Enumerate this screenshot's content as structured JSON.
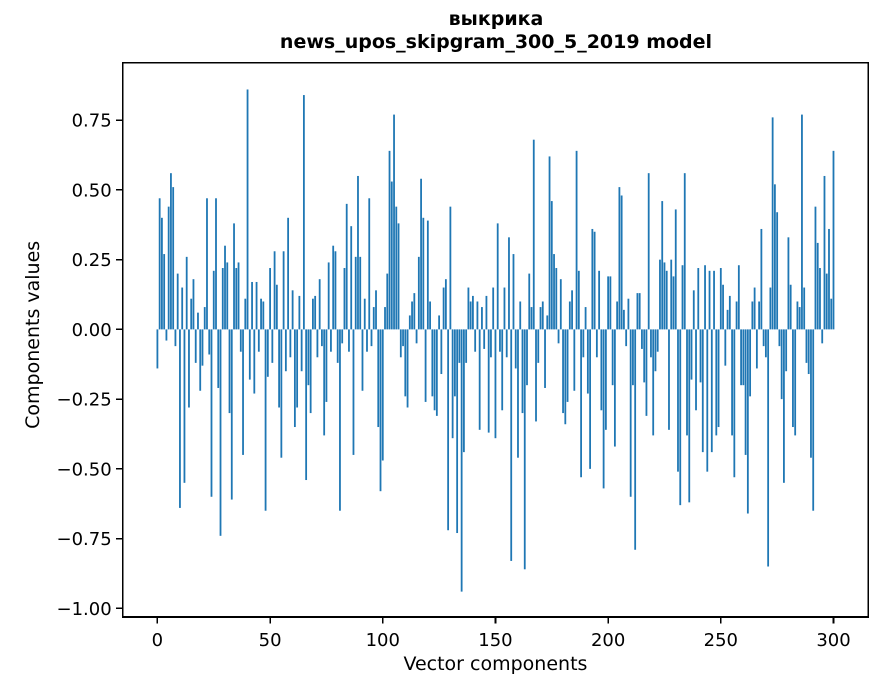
{
  "title_line1": "выкрика",
  "title_line2": "news_upos_skipgram_300_5_2019 model",
  "axes": {
    "xlabel": "Vector components",
    "ylabel": "Components values"
  },
  "chart_data": {
    "type": "bar",
    "title": "выкрика\nnews_upos_skipgram_300_5_2019 model",
    "xlabel": "Vector components",
    "ylabel": "Components values",
    "legend": null,
    "grid": false,
    "bar_color": "#1f77b4",
    "bar_width_units": 0.8,
    "x_ticks": [
      0,
      50,
      100,
      150,
      200,
      250,
      300
    ],
    "y_ticks": [
      0.75,
      0.5,
      0.25,
      0.0,
      -0.25,
      -0.5,
      -0.75,
      -1.0
    ],
    "xlim": [
      -15.4,
      315.4
    ],
    "ylim": [
      -1.031,
      0.956
    ],
    "x_start": 0,
    "values": [
      -0.14,
      0.47,
      0.4,
      0.27,
      -0.04,
      0.44,
      0.56,
      0.51,
      -0.06,
      0.2,
      -0.64,
      0.15,
      -0.55,
      0.26,
      -0.28,
      0.11,
      0.18,
      -0.12,
      0.06,
      -0.22,
      -0.13,
      0.08,
      0.47,
      -0.09,
      -0.6,
      0.21,
      0.47,
      -0.21,
      -0.74,
      0.22,
      0.3,
      0.24,
      -0.3,
      -0.61,
      0.38,
      0.22,
      0.24,
      -0.08,
      -0.45,
      0.11,
      0.86,
      -0.18,
      0.17,
      -0.23,
      0.17,
      -0.08,
      0.11,
      0.1,
      -0.65,
      -0.17,
      0.22,
      -0.12,
      0.28,
      0.16,
      -0.28,
      -0.46,
      0.28,
      -0.15,
      0.4,
      -0.1,
      0.14,
      -0.35,
      -0.28,
      0.12,
      -0.15,
      0.84,
      -0.54,
      -0.2,
      -0.3,
      0.11,
      0.12,
      -0.1,
      0.18,
      -0.06,
      -0.38,
      -0.26,
      0.24,
      -0.08,
      0.3,
      0.28,
      -0.12,
      -0.65,
      -0.05,
      0.22,
      0.45,
      -0.08,
      0.37,
      -0.45,
      0.26,
      0.55,
      0.26,
      -0.22,
      0.11,
      -0.08,
      0.47,
      -0.06,
      0.08,
      0.14,
      -0.35,
      -0.58,
      -0.47,
      0.08,
      0.2,
      0.64,
      0.53,
      0.77,
      0.44,
      0.38,
      -0.1,
      -0.06,
      -0.24,
      -0.28,
      0.05,
      0.1,
      0.13,
      -0.05,
      0.26,
      0.54,
      0.4,
      -0.26,
      0.39,
      0.1,
      -0.24,
      -0.29,
      -0.31,
      0.05,
      -0.16,
      0.15,
      0.18,
      -0.72,
      0.44,
      -0.39,
      -0.24,
      -0.73,
      -0.12,
      -0.94,
      -0.44,
      -0.12,
      0.15,
      0.1,
      0.12,
      -0.08,
      0.1,
      -0.36,
      0.08,
      -0.07,
      0.12,
      -0.37,
      -0.1,
      0.15,
      -0.39,
      0.38,
      -0.08,
      -0.29,
      0.15,
      -0.1,
      0.33,
      -0.83,
      0.27,
      -0.14,
      -0.46,
      0.1,
      -0.3,
      -0.86,
      -0.2,
      0.2,
      0.08,
      0.68,
      -0.33,
      -0.12,
      0.08,
      0.1,
      -0.21,
      0.05,
      0.62,
      0.46,
      0.27,
      0.22,
      -0.05,
      0.18,
      -0.3,
      -0.34,
      -0.26,
      0.1,
      0.14,
      -0.22,
      0.64,
      0.21,
      -0.53,
      -0.1,
      0.08,
      -0.23,
      -0.5,
      0.36,
      0.35,
      -0.1,
      0.21,
      -0.29,
      -0.57,
      -0.36,
      0.19,
      0.19,
      -0.2,
      -0.42,
      0.1,
      0.51,
      0.48,
      0.07,
      -0.06,
      0.11,
      -0.6,
      -0.2,
      -0.79,
      0.13,
      0.13,
      -0.07,
      -0.19,
      -0.31,
      0.56,
      -0.1,
      -0.38,
      -0.15,
      -0.08,
      0.25,
      0.46,
      0.24,
      0.21,
      -0.36,
      0.25,
      0.19,
      0.43,
      -0.51,
      -0.63,
      0.23,
      0.56,
      -0.38,
      -0.62,
      -0.18,
      0.14,
      -0.29,
      0.22,
      -0.19,
      -0.44,
      0.23,
      -0.51,
      0.21,
      -0.44,
      0.21,
      -0.38,
      -0.35,
      0.22,
      0.16,
      -0.13,
      0.07,
      0.12,
      -0.38,
      -0.53,
      0.1,
      0.23,
      -0.2,
      -0.2,
      -0.45,
      -0.66,
      -0.24,
      0.1,
      0.15,
      -0.14,
      0.1,
      0.36,
      -0.06,
      -0.1,
      -0.85,
      0.15,
      0.76,
      0.52,
      0.42,
      -0.06,
      -0.25,
      -0.55,
      -0.15,
      0.33,
      0.16,
      -0.35,
      -0.38,
      0.1,
      0.08,
      0.77,
      0.15,
      -0.12,
      -0.16,
      -0.46,
      -0.65,
      0.44,
      0.31,
      0.22,
      -0.05,
      0.55,
      0.2,
      0.36,
      0.11,
      0.64
    ]
  },
  "colors": {
    "bar": "#1f77b4",
    "axis": "#000000",
    "background": "#ffffff"
  }
}
